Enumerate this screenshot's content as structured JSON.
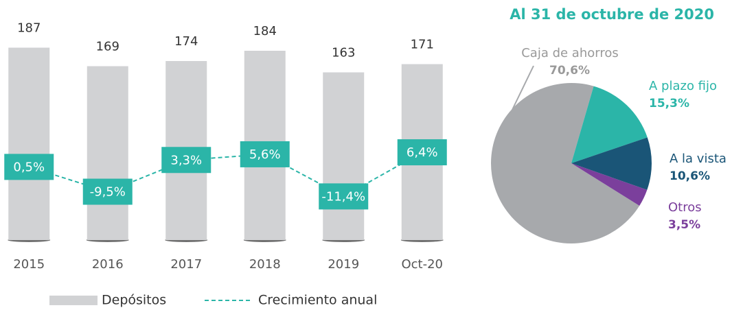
{
  "chart_data": [
    {
      "type": "bar",
      "categories": [
        "2015",
        "2016",
        "2017",
        "2018",
        "2019",
        "Oct-20"
      ],
      "ylim": [
        0,
        200
      ],
      "y2lim": [
        -29,
        54
      ],
      "series": [
        {
          "name": "Depósitos",
          "type": "bar",
          "color": "#d1d2d4",
          "values": [
            187,
            169,
            174,
            184,
            163,
            171
          ]
        },
        {
          "name": "Crecimiento anual",
          "type": "line",
          "axis": "y2",
          "dashed": true,
          "color": "#2bb5a8",
          "values": [
            0.5,
            -9.5,
            3.3,
            5.6,
            -11.4,
            6.4
          ],
          "value_labels": [
            "0,5%",
            "-9,5%",
            "3,3%",
            "5,6%",
            "-11,4%",
            "6,4%"
          ]
        }
      ]
    },
    {
      "type": "pie",
      "title": "Al 31 de octubre de 2020",
      "categories": [
        "Caja de ahorros",
        "A plazo fijo",
        "A la vista",
        "Otros"
      ],
      "values": [
        70.6,
        15.3,
        10.6,
        3.5
      ],
      "value_labels": [
        "70,6%",
        "15,3%",
        "10,6%",
        "3,5%"
      ],
      "colors": [
        "#a7a9ac",
        "#2bb5a8",
        "#1a5577",
        "#7b3f9c"
      ]
    }
  ]
}
